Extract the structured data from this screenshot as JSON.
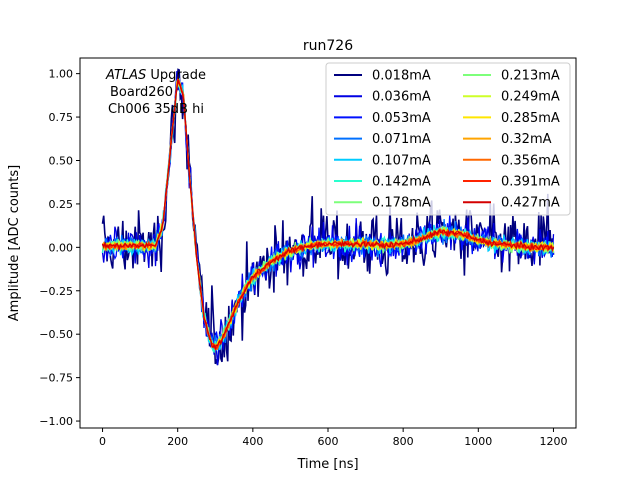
{
  "chart_data": {
    "type": "line",
    "title": "run726",
    "xlabel": "Time [ns]",
    "ylabel": "Amplitude [ADC counts]",
    "xlim": [
      -60,
      1260
    ],
    "ylim": [
      -1.04,
      1.09
    ],
    "x_ticks": [
      0,
      200,
      400,
      600,
      800,
      1000,
      1200
    ],
    "y_ticks": [
      -1.0,
      -0.75,
      -0.5,
      -0.25,
      0.0,
      0.25,
      0.5,
      0.75,
      1.0
    ],
    "x_tick_labels": [
      "0",
      "200",
      "400",
      "600",
      "800",
      "1000",
      "1200"
    ],
    "y_tick_labels": [
      "−1.00",
      "−0.75",
      "−0.50",
      "−0.25",
      "0.00",
      "0.25",
      "0.50",
      "0.75",
      "1.00"
    ],
    "grid": false,
    "legend_position": "top-right",
    "legend_columns": 2,
    "annotation": {
      "italic": "ATLAS",
      "rest": " Upgrade",
      "line2": "Board260",
      "line3": "Ch006 35dB hi"
    },
    "pulse_shape_x": [
      0,
      140,
      160,
      180,
      200,
      215,
      230,
      250,
      270,
      290,
      305,
      320,
      340,
      360,
      380,
      400,
      450,
      500,
      550,
      600,
      650,
      700,
      750,
      800,
      850,
      900,
      950,
      1000,
      1050,
      1100,
      1150,
      1200
    ],
    "pulse_shape_y": [
      0.01,
      0.01,
      0.12,
      0.55,
      0.97,
      0.88,
      0.45,
      -0.05,
      -0.4,
      -0.56,
      -0.57,
      -0.52,
      -0.42,
      -0.32,
      -0.24,
      -0.17,
      -0.08,
      -0.02,
      0.01,
      0.02,
      0.02,
      0.02,
      0.01,
      0.02,
      0.05,
      0.09,
      0.08,
      0.04,
      0.02,
      0.01,
      0.0,
      0.0
    ],
    "series": [
      {
        "name": "0.018mA",
        "color": "#00007f",
        "noise": 0.16
      },
      {
        "name": "0.036mA",
        "color": "#0000e3",
        "noise": 0.09
      },
      {
        "name": "0.053mA",
        "color": "#0010ff",
        "noise": 0.065
      },
      {
        "name": "0.071mA",
        "color": "#0070ff",
        "noise": 0.05
      },
      {
        "name": "0.107mA",
        "color": "#00ccff",
        "noise": 0.04
      },
      {
        "name": "0.142mA",
        "color": "#29ffce",
        "noise": 0.032
      },
      {
        "name": "0.178mA",
        "color": "#7dff7a",
        "noise": 0.028
      },
      {
        "name": "0.213mA",
        "color": "#7dff7a",
        "noise": 0.025
      },
      {
        "name": "0.249mA",
        "color": "#ceff29",
        "noise": 0.022
      },
      {
        "name": "0.285mA",
        "color": "#ffe600",
        "noise": 0.02
      },
      {
        "name": "0.32mA",
        "color": "#ffa400",
        "noise": 0.018
      },
      {
        "name": "0.356mA",
        "color": "#ff6800",
        "noise": 0.016
      },
      {
        "name": "0.391mA",
        "color": "#ff2300",
        "noise": 0.015
      },
      {
        "name": "0.427mA",
        "color": "#d40000",
        "noise": 0.014
      }
    ]
  }
}
